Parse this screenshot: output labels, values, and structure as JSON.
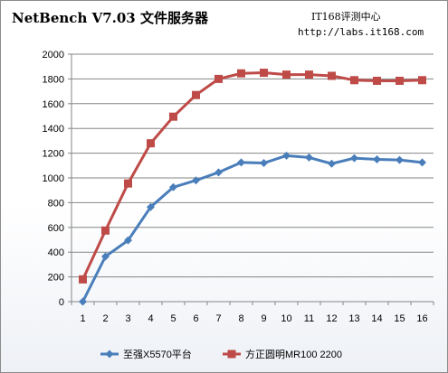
{
  "watermark": {
    "line1": "IT168评测中心",
    "line2": "http://labs.it168.com"
  },
  "chart_data": {
    "type": "line",
    "title": "NetBench V7.03 文件服务器",
    "xlabel": "",
    "ylabel": "",
    "x": [
      "1",
      "2",
      "3",
      "4",
      "5",
      "6",
      "7",
      "8",
      "9",
      "10",
      "11",
      "12",
      "13",
      "14",
      "15",
      "16"
    ],
    "ylim": [
      0,
      2000
    ],
    "yticks": [
      0,
      200,
      400,
      600,
      800,
      1000,
      1200,
      1400,
      1600,
      1800,
      2000
    ],
    "grid": true,
    "legend_position": "bottom",
    "series": [
      {
        "name": "至强X5570平台",
        "color": "#4a7ebb",
        "marker": "diamond",
        "values": [
          0,
          365,
          495,
          765,
          925,
          980,
          1045,
          1125,
          1120,
          1180,
          1165,
          1115,
          1160,
          1150,
          1145,
          1125
        ]
      },
      {
        "name": "方正圆明MR100 2200",
        "color": "#be4b48",
        "marker": "square",
        "values": [
          180,
          575,
          955,
          1280,
          1495,
          1670,
          1800,
          1845,
          1850,
          1835,
          1835,
          1825,
          1790,
          1785,
          1785,
          1790
        ]
      }
    ]
  }
}
